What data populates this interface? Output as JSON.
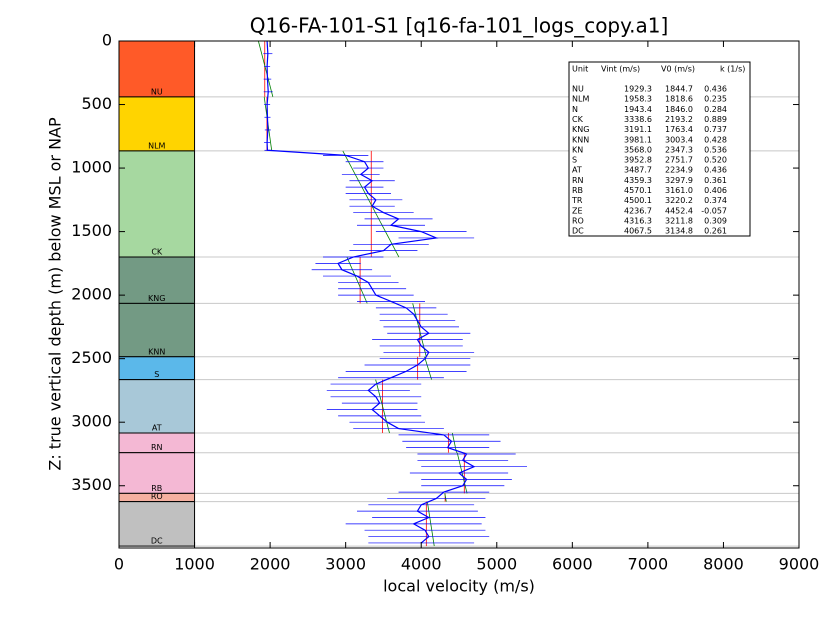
{
  "chart_data": {
    "type": "velocity-log",
    "title": "Q16-FA-101-S1 [q16-fa-101_logs_copy.a1]",
    "xlabel": "local velocity (m/s)",
    "ylabel": "Z: true vertical depth (m) below MSL or NAP",
    "xlim": [
      0,
      9000
    ],
    "xticks": [
      0,
      1000,
      2000,
      3000,
      4000,
      5000,
      6000,
      7000,
      8000,
      9000
    ],
    "ylim": [
      3990,
      0
    ],
    "yticks": [
      0,
      500,
      1000,
      1500,
      2000,
      2500,
      3000,
      3500
    ],
    "layers": [
      {
        "name": "NU",
        "base": 440,
        "color": "#ff5a28"
      },
      {
        "name": "NLM",
        "base": 865,
        "color": "#ffd400"
      },
      {
        "name": "CK",
        "base": 1700,
        "color": "#a6d8a0"
      },
      {
        "name": "KNG",
        "base": 2065,
        "color": "#739a84"
      },
      {
        "name": "KNN",
        "base": 2485,
        "color": "#739a84"
      },
      {
        "name": "S",
        "base": 2665,
        "color": "#5bb8ea"
      },
      {
        "name": "AT",
        "base": 3085,
        "color": "#a8c8d8"
      },
      {
        "name": "RN",
        "base": 3240,
        "color": "#f4b8d4"
      },
      {
        "name": "RB",
        "base": 3560,
        "color": "#f4b8d4"
      },
      {
        "name": "RO",
        "base": 3625,
        "color": "#f4b0a0"
      },
      {
        "name": "DC",
        "base": 3975,
        "color": "#c0c0c0"
      }
    ],
    "log": {
      "color": "#0000ff",
      "depth": [
        0,
        100,
        200,
        300,
        400,
        500,
        600,
        700,
        800,
        860,
        900,
        950,
        1000,
        1050,
        1100,
        1150,
        1200,
        1250,
        1300,
        1350,
        1400,
        1450,
        1500,
        1550,
        1600,
        1650,
        1700,
        1750,
        1800,
        1850,
        1900,
        1950,
        2000,
        2050,
        2100,
        2150,
        2200,
        2250,
        2300,
        2350,
        2400,
        2450,
        2500,
        2550,
        2600,
        2650,
        2700,
        2750,
        2800,
        2850,
        2900,
        2950,
        3000,
        3050,
        3100,
        3150,
        3200,
        3250,
        3300,
        3350,
        3400,
        3450,
        3500,
        3550,
        3600,
        3650,
        3700,
        3750,
        3800,
        3850,
        3900,
        3950
      ],
      "velocity": [
        1960,
        1970,
        1960,
        1965,
        1975,
        1960,
        1965,
        1970,
        1960,
        1965,
        3000,
        3250,
        3300,
        3200,
        3350,
        3250,
        3300,
        3400,
        3350,
        3500,
        3700,
        3600,
        4000,
        4200,
        3600,
        3500,
        3100,
        2900,
        2950,
        3150,
        3300,
        3350,
        3400,
        3600,
        3800,
        3900,
        3950,
        4000,
        4100,
        3950,
        4000,
        4100,
        4050,
        3950,
        3800,
        3600,
        3400,
        3300,
        3400,
        3450,
        3350,
        3450,
        3550,
        3700,
        4300,
        4400,
        4350,
        4600,
        4550,
        4700,
        4500,
        4600,
        4550,
        4300,
        4200,
        4000,
        3950,
        4100,
        3900,
        4050,
        4100,
        4000
      ],
      "spread": [
        150,
        60,
        40,
        50,
        60,
        40,
        40,
        40,
        40,
        40,
        300,
        250,
        200,
        250,
        300,
        250,
        300,
        350,
        300,
        400,
        450,
        450,
        600,
        500,
        500,
        450,
        400,
        300,
        400,
        450,
        400,
        450,
        500,
        450,
        400,
        450,
        500,
        500,
        550,
        600,
        550,
        600,
        600,
        700,
        800,
        700,
        600,
        550,
        600,
        500,
        600,
        550,
        500,
        600,
        600,
        650,
        550,
        650,
        600,
        700,
        650,
        600,
        550,
        600,
        650,
        700,
        800,
        750,
        900,
        800,
        800,
        700
      ]
    },
    "interval_color": "#ff0000",
    "trend_color": "#008000",
    "table": {
      "header": [
        "Unit",
        "Vint (m/s)",
        "V0 (m/s)",
        "k (1/s)"
      ],
      "rows": [
        {
          "unit": "NU",
          "vint": 1929.3,
          "v0": 1844.7,
          "k": 0.436
        },
        {
          "unit": "NLM",
          "vint": 1958.3,
          "v0": 1818.6,
          "k": 0.235
        },
        {
          "unit": "N",
          "vint": 1943.4,
          "v0": {
            "value": 1846,
            "label": "1846.0"
          },
          "k": 0.284
        },
        {
          "unit": "CK",
          "vint": 3338.6,
          "v0": 2193.2,
          "k": 0.889
        },
        {
          "unit": "KNG",
          "vint": 3191.1,
          "v0": 1763.4,
          "k": 0.737
        },
        {
          "unit": "KNN",
          "vint": 3981.1,
          "v0": 3003.4,
          "k": 0.428
        },
        {
          "unit": "KN",
          "vint": {
            "value": 3568,
            "label": "3568.0"
          },
          "v0": 2347.3,
          "k": 0.536
        },
        {
          "unit": "S",
          "vint": 3952.8,
          "v0": 2751.7,
          "k": {
            "value": 0.52,
            "label": "0.520"
          }
        },
        {
          "unit": "AT",
          "vint": 3487.7,
          "v0": 2234.9,
          "k": 0.436
        },
        {
          "unit": "RN",
          "vint": 4359.3,
          "v0": 3297.9,
          "k": 0.361
        },
        {
          "unit": "RB",
          "vint": 4570.1,
          "v0": {
            "value": 3161,
            "label": "3161.0"
          },
          "k": 0.406
        },
        {
          "unit": "TR",
          "vint": 4500.1,
          "v0": 3220.2,
          "k": 0.374
        },
        {
          "unit": "ZE",
          "vint": 4236.7,
          "v0": 4452.4,
          "k": -0.057
        },
        {
          "unit": "RO",
          "vint": 4316.3,
          "v0": 3211.8,
          "k": 0.309
        },
        {
          "unit": "DC",
          "vint": 4067.5,
          "v0": 3134.8,
          "k": 0.261
        }
      ]
    }
  }
}
